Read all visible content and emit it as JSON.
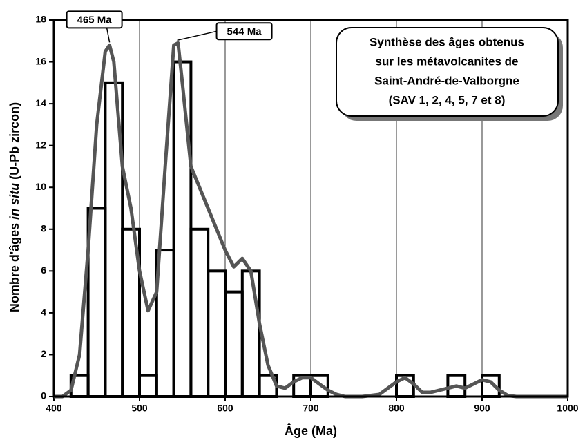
{
  "chart_data": {
    "type": "histogram",
    "xlabel": "Âge (Ma)",
    "ylabel_parts": [
      "Nombre d'âges ",
      "in situ",
      " (U-Pb zircon)"
    ],
    "bins": [
      420,
      440,
      460,
      480,
      500,
      520,
      540,
      560,
      580,
      600,
      620,
      640,
      660,
      680,
      700,
      720,
      740,
      760,
      780,
      800,
      820,
      840,
      860,
      880,
      900,
      920
    ],
    "counts": [
      1,
      9,
      15,
      8,
      1,
      7,
      16,
      8,
      6,
      5,
      6,
      1,
      0,
      1,
      1,
      0,
      0,
      0,
      0,
      1,
      0,
      0,
      1,
      0,
      1
    ],
    "bar_color": "#000000",
    "curve": {
      "color": "#555555",
      "x": [
        400,
        410,
        420,
        430,
        440,
        450,
        460,
        465,
        470,
        480,
        490,
        500,
        510,
        520,
        530,
        540,
        545,
        550,
        560,
        570,
        580,
        590,
        600,
        610,
        620,
        630,
        640,
        650,
        660,
        670,
        680,
        690,
        700,
        710,
        720,
        730,
        740,
        760,
        780,
        800,
        810,
        820,
        830,
        840,
        850,
        860,
        870,
        880,
        890,
        900,
        910,
        920,
        930,
        940,
        1000
      ],
      "values": [
        0,
        0,
        0.3,
        2,
        7,
        13,
        16.5,
        16.8,
        16,
        11,
        9,
        6,
        4.1,
        5,
        11,
        16.8,
        16.9,
        15,
        11,
        10,
        9,
        8,
        7,
        6.2,
        6.6,
        6,
        3.5,
        1.5,
        0.5,
        0.4,
        0.7,
        0.9,
        0.9,
        0.6,
        0.3,
        0.1,
        0,
        0,
        0.1,
        0.7,
        0.9,
        0.6,
        0.2,
        0.2,
        0.3,
        0.4,
        0.5,
        0.4,
        0.6,
        0.8,
        0.7,
        0.3,
        0.05,
        0,
        0
      ]
    },
    "annotations": [
      {
        "text": "465 Ma",
        "x": 465,
        "y": 16.8
      },
      {
        "text": "544 Ma",
        "x": 544,
        "y": 16.9
      }
    ],
    "info_box": [
      "Synthèse des âges obtenus",
      "sur les métavolcanites de",
      "Saint-André-de-Valborgne",
      "(SAV 1, 2, 4, 5, 7 et 8)"
    ],
    "xlim": [
      400,
      1000
    ],
    "xticks": [
      400,
      500,
      600,
      700,
      800,
      900,
      1000
    ],
    "ylim": [
      0,
      18
    ],
    "yticks": [
      0,
      2,
      4,
      6,
      8,
      10,
      12,
      14,
      16,
      18
    ],
    "grid": "x"
  }
}
